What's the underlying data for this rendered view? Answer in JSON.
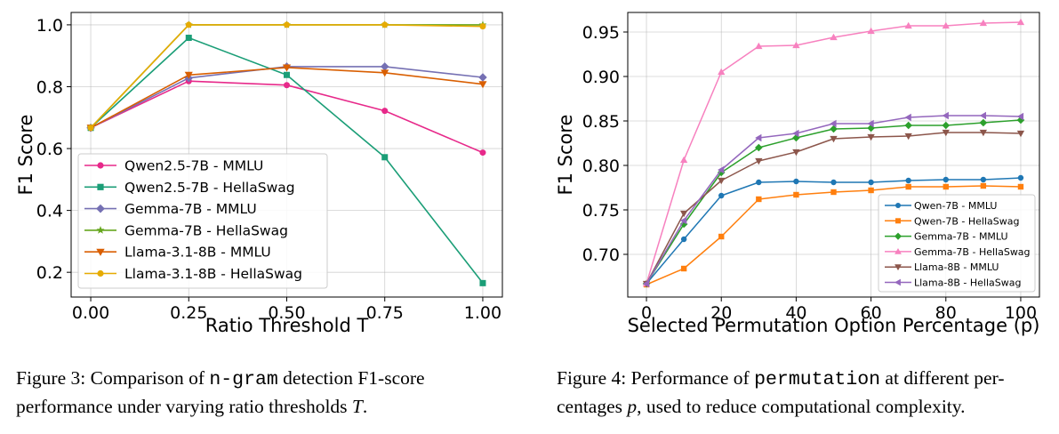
{
  "chart_data": [
    {
      "type": "line",
      "xlabel": "Ratio Threshold T",
      "ylabel": "F1 Score",
      "xlim": [
        -0.05,
        1.05
      ],
      "ylim": [
        0.12,
        1.04
      ],
      "xticks": [
        0.0,
        0.25,
        0.5,
        0.75,
        1.0
      ],
      "xtick_labels": [
        "0.00",
        "0.25",
        "0.50",
        "0.75",
        "1.00"
      ],
      "yticks": [
        0.2,
        0.4,
        0.6,
        0.8,
        1.0
      ],
      "ytick_labels": [
        "0.2",
        "0.4",
        "0.6",
        "0.8",
        "1.0"
      ],
      "legend_position": "lower-left",
      "grid": true,
      "x": [
        0.0,
        0.25,
        0.5,
        0.75,
        1.0
      ],
      "series": [
        {
          "name": "Qwen2.5-7B - MMLU",
          "color": "#e7298a",
          "marker": "circle",
          "values": [
            0.667,
            0.818,
            0.805,
            0.722,
            0.587
          ]
        },
        {
          "name": "Qwen2.5-7B - HellaSwag",
          "color": "#1b9e77",
          "marker": "square",
          "values": [
            0.667,
            0.958,
            0.838,
            0.572,
            0.165
          ]
        },
        {
          "name": "Gemma-7B - MMLU",
          "color": "#7570b3",
          "marker": "diamond",
          "values": [
            0.667,
            0.828,
            0.865,
            0.865,
            0.83
          ]
        },
        {
          "name": "Gemma-7B - HellaSwag",
          "color": "#66a61e",
          "marker": "star",
          "values": [
            0.667,
            1.0,
            1.0,
            1.0,
            1.0
          ]
        },
        {
          "name": "Llama-3.1-8B - MMLU",
          "color": "#d95f02",
          "marker": "triangle-down",
          "values": [
            0.667,
            0.838,
            0.862,
            0.845,
            0.808
          ]
        },
        {
          "name": "Llama-3.1-8B - HellaSwag",
          "color": "#e6ab02",
          "marker": "circle",
          "values": [
            0.667,
            1.0,
            1.0,
            1.0,
            0.995
          ]
        }
      ]
    },
    {
      "type": "line",
      "xlabel": "Selected Permutation Option Percentage (p)",
      "ylabel": "F1 Score",
      "xlim": [
        -5,
        105
      ],
      "ylim": [
        0.652,
        0.972
      ],
      "xticks": [
        0,
        20,
        40,
        60,
        80,
        100
      ],
      "xtick_labels": [
        "0",
        "20",
        "40",
        "60",
        "80",
        "100"
      ],
      "yticks": [
        0.7,
        0.75,
        0.8,
        0.85,
        0.9,
        0.95
      ],
      "ytick_labels": [
        "0.70",
        "0.75",
        "0.80",
        "0.85",
        "0.90",
        "0.95"
      ],
      "legend_position": "lower-right",
      "grid": true,
      "x": [
        0,
        10,
        20,
        30,
        40,
        50,
        60,
        70,
        80,
        90,
        100
      ],
      "series": [
        {
          "name": "Qwen-7B - MMLU",
          "color": "#1f77b4",
          "marker": "circle",
          "values": [
            0.667,
            0.717,
            0.766,
            0.781,
            0.782,
            0.781,
            0.781,
            0.783,
            0.784,
            0.784,
            0.786
          ]
        },
        {
          "name": "Qwen-7B - HellaSwag",
          "color": "#ff7f0e",
          "marker": "square",
          "values": [
            0.666,
            0.684,
            0.72,
            0.762,
            0.767,
            0.77,
            0.772,
            0.776,
            0.776,
            0.777,
            0.776
          ]
        },
        {
          "name": "Gemma-7B - MMLU",
          "color": "#2ca02c",
          "marker": "diamond",
          "values": [
            0.667,
            0.734,
            0.792,
            0.82,
            0.831,
            0.841,
            0.842,
            0.845,
            0.845,
            0.848,
            0.851
          ]
        },
        {
          "name": "Gemma-7B - HellaSwag",
          "color": "#f781bf",
          "marker": "triangle-up",
          "values": [
            0.667,
            0.806,
            0.905,
            0.934,
            0.935,
            0.944,
            0.951,
            0.957,
            0.957,
            0.96,
            0.961
          ]
        },
        {
          "name": "Llama-8B - MMLU",
          "color": "#8c564b",
          "marker": "triangle-down",
          "values": [
            0.667,
            0.746,
            0.783,
            0.805,
            0.815,
            0.83,
            0.832,
            0.833,
            0.837,
            0.837,
            0.836
          ]
        },
        {
          "name": "Llama-8B - HellaSwag",
          "color": "#9467bd",
          "marker": "triangle-left",
          "values": [
            0.667,
            0.738,
            0.795,
            0.831,
            0.836,
            0.847,
            0.847,
            0.854,
            0.856,
            0.856,
            0.855
          ]
        }
      ]
    }
  ],
  "captions": {
    "fig3": {
      "line1_pre": "Figure 3:  Comparison of ",
      "line1_mono": "n-gram",
      "line1_post": " detection F1-score",
      "line2_pre": "performance under varying ratio thresholds ",
      "line2_var": "T",
      "line2_post": "."
    },
    "fig4": {
      "line1_pre": "Figure 4: Performance of ",
      "line1_mono": "permutation",
      "line1_post": " at different per-",
      "line2_pre": "centages ",
      "line2_var": "p",
      "line2_post": ", used to reduce computational complexity."
    }
  }
}
